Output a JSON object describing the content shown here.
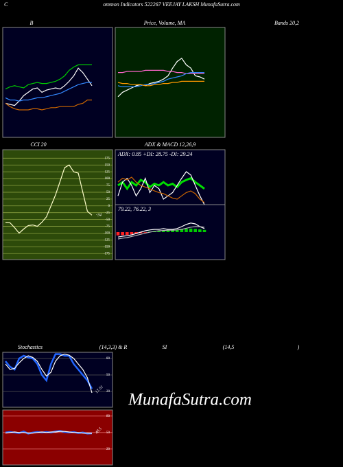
{
  "captions": [
    "C",
    "ommon  Indicators 522267 VEEJAY LAKSH MunafaSutra.com",
    "B",
    "Price, Volume, MA",
    "Bands 20,2",
    "CCI 20",
    "ADX  & MACD 12,26,9",
    "Stochastics",
    "(14,3,3) & R",
    "SI",
    "(14,5",
    ")",
    "MunafaSutra.com"
  ],
  "chart_data": [
    {
      "type": "line",
      "ylim": [
        0,
        100
      ],
      "series": [
        {
          "color": "#ffffff",
          "values": [
            31,
            30,
            29,
            33,
            38,
            41,
            44,
            45,
            41,
            43,
            44,
            45,
            44,
            47,
            51,
            56,
            63,
            59,
            53,
            47
          ]
        },
        {
          "color": "#00cc00",
          "values": [
            44,
            46,
            47,
            46,
            45,
            48,
            49,
            50,
            49,
            49,
            50,
            51,
            53,
            56,
            61,
            64,
            66,
            66,
            66,
            66
          ]
        },
        {
          "color": "#3388ff",
          "values": [
            36,
            34,
            34,
            33,
            34,
            34,
            35,
            36,
            36,
            37,
            38,
            39,
            40,
            42,
            44,
            46,
            48,
            49,
            50,
            50
          ]
        },
        {
          "color": "#cc6600",
          "values": [
            31,
            28,
            26,
            25,
            25,
            25,
            26,
            26,
            25,
            26,
            27,
            27,
            28,
            28,
            28,
            28,
            30,
            31,
            34,
            34
          ]
        }
      ]
    },
    {
      "type": "line",
      "ylim": [
        0,
        100
      ],
      "series": [
        {
          "color": "#ffffff",
          "values": [
            37,
            41,
            43,
            45,
            47,
            48,
            47,
            49,
            50,
            51,
            53,
            56,
            63,
            69,
            72,
            66,
            63,
            56,
            55,
            53
          ]
        },
        {
          "color": "#ff66cc",
          "values": [
            59,
            59,
            60,
            60,
            60,
            60,
            61,
            61,
            61,
            61,
            61,
            60,
            60,
            59,
            59,
            58,
            58,
            58,
            58,
            58
          ]
        },
        {
          "color": "#3388ff",
          "values": [
            47,
            46,
            46,
            46,
            46,
            47,
            48,
            48,
            49,
            50,
            51,
            53,
            54,
            55,
            56,
            58,
            59,
            59,
            59,
            59
          ]
        },
        {
          "color": "#ff9900",
          "values": [
            50,
            49,
            49,
            48,
            48,
            48,
            47,
            47,
            48,
            48,
            49,
            49,
            50,
            50,
            51,
            51,
            51,
            51,
            51,
            51
          ]
        }
      ]
    },
    {
      "type": "line",
      "ylim": [
        -197,
        206
      ],
      "yticks": [
        175,
        150,
        125,
        100,
        75,
        50,
        25,
        0,
        -25,
        -50,
        -75,
        -100,
        -125,
        -150,
        -175
      ],
      "grid": true,
      "label_last": true,
      "series": [
        {
          "color": "#ffffcc",
          "values": [
            -60,
            -62,
            -80,
            -100,
            -85,
            -72,
            -70,
            -75,
            -60,
            -40,
            0,
            40,
            90,
            140,
            150,
            125,
            120,
            50,
            -20,
            -34
          ]
        }
      ]
    },
    {
      "type": "line",
      "ylim": [
        0,
        100
      ],
      "annotation": "ADX: 0.85 +DI: 28.75 -DI: 29.24",
      "series": [
        {
          "color": "#00dd00",
          "values": [
            35,
            41,
            29,
            41,
            35,
            45,
            41,
            32,
            38,
            35,
            41,
            35,
            38,
            32,
            41,
            45,
            48,
            41,
            35,
            29
          ],
          "width": 3
        },
        {
          "color": "#ffffff",
          "values": [
            16,
            41,
            48,
            35,
            16,
            29,
            48,
            22,
            35,
            29,
            10,
            16,
            22,
            35,
            48,
            60,
            54,
            35,
            16,
            0
          ]
        },
        {
          "color": "#cc6600",
          "values": [
            41,
            48,
            45,
            50,
            41,
            35,
            32,
            29,
            25,
            22,
            20,
            16,
            12,
            10,
            16,
            22,
            25,
            20,
            10,
            4
          ]
        }
      ]
    },
    {
      "type": "combo",
      "ylim": [
        -1,
        1
      ],
      "annotation": "79.22, 76.22, 3",
      "histogram": {
        "up_color": "#00cc00",
        "down_color": "#ff2222",
        "values": [
          -0.12,
          -0.11,
          -0.1,
          -0.08,
          -0.06,
          -0.04,
          -0.02,
          0.02,
          0.04,
          0.05,
          0.06,
          0.06,
          0.07,
          0.08,
          0.1,
          0.12,
          0.13,
          0.12,
          0.1,
          0.08
        ]
      },
      "series": [
        {
          "color": "#ffffff",
          "values": [
            -0.18,
            -0.15,
            -0.13,
            -0.1,
            -0.05,
            0,
            0.05,
            0.08,
            0.1,
            0.1,
            0.13,
            0.1,
            0.1,
            0.13,
            0.2,
            0.28,
            0.33,
            0.3,
            0.2,
            0.13
          ]
        },
        {
          "color": "#bbbbbb",
          "values": [
            -0.25,
            -0.22,
            -0.2,
            -0.16,
            -0.12,
            -0.08,
            -0.04,
            0,
            0.03,
            0.05,
            0.06,
            0.07,
            0.07,
            0.08,
            0.1,
            0.14,
            0.18,
            0.2,
            0.2,
            0.18
          ]
        }
      ]
    },
    {
      "type": "line",
      "ylim": [
        -8.75,
        91.25
      ],
      "yticks": [
        80,
        50,
        20
      ],
      "grid": true,
      "label_last": true,
      "series": [
        {
          "color": "#2266ff",
          "values": [
            75,
            65,
            60,
            80,
            85,
            82,
            80,
            70,
            50,
            40,
            70,
            88,
            88,
            85,
            85,
            70,
            60,
            50,
            40,
            25
          ],
          "width": 2.5
        },
        {
          "color": "#ffffff",
          "values": [
            70,
            60,
            62,
            72,
            80,
            85,
            82,
            75,
            60,
            48,
            55,
            75,
            85,
            88,
            86,
            80,
            70,
            60,
            45,
            17.51
          ]
        }
      ]
    },
    {
      "type": "line",
      "ylim": [
        -9,
        91
      ],
      "yticks": [
        80,
        50,
        20
      ],
      "grid": true,
      "label_last": true,
      "series": [
        {
          "color": "#2266ff",
          "values": [
            50,
            51,
            50,
            49,
            52,
            48,
            50,
            51,
            50,
            51,
            50,
            52,
            53,
            51,
            50,
            51,
            49,
            50,
            48,
            48.5
          ],
          "width": 2.5
        },
        {
          "color": "#ffffff",
          "values": [
            49,
            50,
            51,
            50,
            50,
            49,
            49,
            50,
            51,
            50,
            51,
            51,
            52,
            52,
            51,
            50,
            50,
            49,
            49,
            48.5
          ]
        }
      ]
    }
  ]
}
